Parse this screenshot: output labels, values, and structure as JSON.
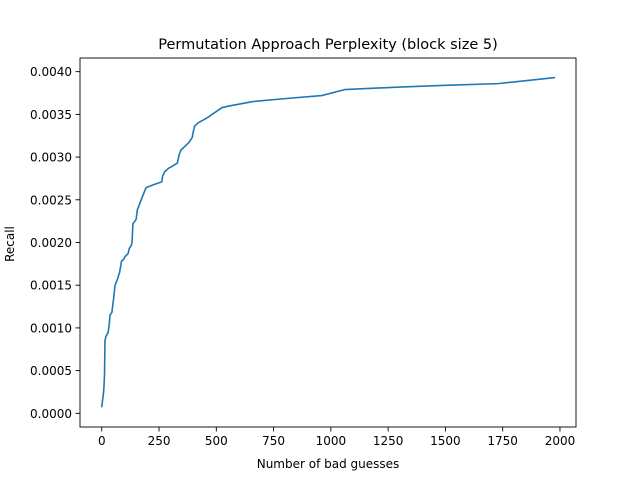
{
  "chart_data": {
    "type": "line",
    "title": "Permutation Approach Perplexity (block size 5)",
    "xlabel": "Number of bad guesses",
    "ylabel": "Recall",
    "xlim": [
      -95,
      2070
    ],
    "ylim": [
      -0.00016,
      0.00416
    ],
    "xticks": [
      0,
      250,
      500,
      750,
      1000,
      1250,
      1500,
      1750,
      2000
    ],
    "xtick_labels": [
      "0",
      "250",
      "500",
      "750",
      "1000",
      "1250",
      "1500",
      "1750",
      "2000"
    ],
    "yticks": [
      0.0,
      0.0005,
      0.001,
      0.0015,
      0.002,
      0.0025,
      0.003,
      0.0035,
      0.004
    ],
    "ytick_labels": [
      "0.0000",
      "0.0005",
      "0.0010",
      "0.0015",
      "0.0020",
      "0.0025",
      "0.0030",
      "0.0035",
      "0.0040"
    ],
    "grid": false,
    "legend": "none",
    "series": [
      {
        "color": "#1f77b4",
        "x": [
          0,
          8,
          10,
          12,
          14,
          18,
          28,
          33,
          36,
          44,
          52,
          58,
          70,
          74,
          78,
          86,
          95,
          100,
          115,
          120,
          128,
          132,
          136,
          150,
          155,
          165,
          175,
          193,
          200,
          230,
          262,
          265,
          275,
          292,
          300,
          330,
          337,
          345,
          380,
          395,
          398,
          405,
          420,
          460,
          525,
          560,
          660,
          780,
          960,
          1060,
          1300,
          1500,
          1730,
          1800,
          1975
        ],
        "y": [
          8e-05,
          0.00025,
          0.00033,
          0.00045,
          0.00085,
          0.0009,
          0.00095,
          0.00105,
          0.00115,
          0.00118,
          0.00135,
          0.0015,
          0.00158,
          0.00162,
          0.00165,
          0.00178,
          0.0018,
          0.00183,
          0.00187,
          0.00193,
          0.00196,
          0.002,
          0.00222,
          0.00227,
          0.00238,
          0.00245,
          0.00252,
          0.00264,
          0.00265,
          0.00268,
          0.00271,
          0.00277,
          0.00283,
          0.00287,
          0.00288,
          0.00293,
          0.00302,
          0.00308,
          0.00317,
          0.00323,
          0.00328,
          0.00336,
          0.0034,
          0.00346,
          0.00358,
          0.0036,
          0.00365,
          0.00368,
          0.00372,
          0.00379,
          0.00382,
          0.00384,
          0.00386,
          0.00388,
          0.00393
        ]
      }
    ]
  }
}
